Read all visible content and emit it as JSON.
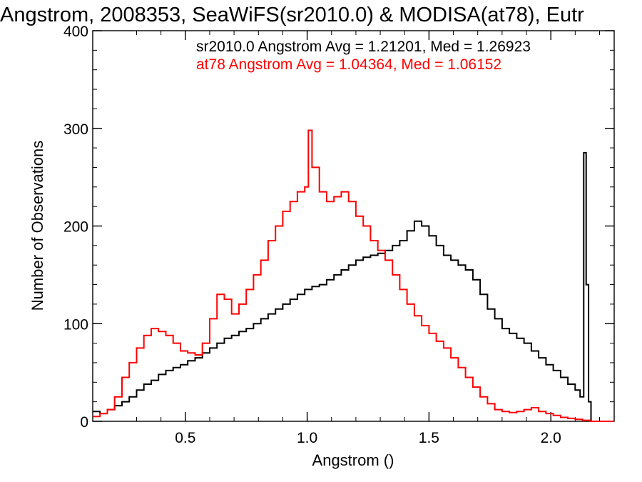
{
  "chart_data": {
    "type": "line",
    "title": "Angstrom, 2008353, SeaWiFS(sr2010.0) & MODISA(at78), Eutr",
    "xlabel": "Angstrom ()",
    "ylabel": "Number of Observations",
    "xlim": [
      0.12,
      2.26
    ],
    "ylim": [
      0,
      400
    ],
    "x_ticks": [
      "0.5",
      "1.0",
      "1.5",
      "2.0"
    ],
    "y_ticks": [
      "0",
      "100",
      "200",
      "300",
      "400"
    ],
    "grid": false,
    "annotations": [
      {
        "text": "sr2010.0 Angstrom Avg = 1.21201, Med = 1.26923",
        "color": "#000000"
      },
      {
        "text": "at78 Angstrom Avg = 1.04364, Med = 1.06152",
        "color": "#ff0000"
      }
    ],
    "series": [
      {
        "color": "#000000",
        "line_style": "steps",
        "x": [
          0.12,
          0.15,
          0.18,
          0.21,
          0.24,
          0.27,
          0.3,
          0.33,
          0.36,
          0.39,
          0.42,
          0.45,
          0.48,
          0.51,
          0.54,
          0.57,
          0.6,
          0.63,
          0.66,
          0.69,
          0.72,
          0.75,
          0.78,
          0.81,
          0.84,
          0.87,
          0.9,
          0.93,
          0.96,
          0.99,
          1.02,
          1.05,
          1.08,
          1.11,
          1.14,
          1.17,
          1.2,
          1.23,
          1.26,
          1.29,
          1.32,
          1.35,
          1.38,
          1.41,
          1.44,
          1.47,
          1.5,
          1.53,
          1.56,
          1.59,
          1.62,
          1.65,
          1.68,
          1.71,
          1.74,
          1.77,
          1.8,
          1.83,
          1.86,
          1.89,
          1.92,
          1.95,
          1.98,
          2.01,
          2.04,
          2.07,
          2.1,
          2.12,
          2.135,
          2.145,
          2.155,
          2.165,
          2.18,
          2.21,
          2.26
        ],
        "values": [
          10,
          8,
          12,
          16,
          20,
          25,
          32,
          38,
          42,
          48,
          52,
          55,
          58,
          62,
          65,
          70,
          75,
          80,
          85,
          88,
          92,
          95,
          100,
          105,
          110,
          115,
          120,
          125,
          130,
          135,
          138,
          140,
          145,
          150,
          155,
          160,
          165,
          168,
          170,
          172,
          175,
          180,
          185,
          195,
          205,
          200,
          190,
          180,
          170,
          165,
          160,
          155,
          145,
          130,
          115,
          105,
          95,
          90,
          85,
          80,
          72,
          65,
          58,
          52,
          45,
          38,
          32,
          25,
          275,
          140,
          20,
          0,
          0,
          0,
          0
        ]
      },
      {
        "color": "#ff0000",
        "line_style": "steps",
        "x": [
          0.12,
          0.15,
          0.18,
          0.21,
          0.24,
          0.27,
          0.3,
          0.33,
          0.36,
          0.39,
          0.42,
          0.45,
          0.48,
          0.51,
          0.54,
          0.57,
          0.6,
          0.63,
          0.66,
          0.69,
          0.72,
          0.75,
          0.78,
          0.81,
          0.84,
          0.87,
          0.9,
          0.93,
          0.96,
          0.99,
          1.005,
          1.02,
          1.05,
          1.08,
          1.11,
          1.14,
          1.17,
          1.2,
          1.23,
          1.26,
          1.29,
          1.32,
          1.35,
          1.38,
          1.41,
          1.44,
          1.47,
          1.5,
          1.53,
          1.56,
          1.59,
          1.62,
          1.65,
          1.68,
          1.71,
          1.74,
          1.77,
          1.8,
          1.83,
          1.86,
          1.89,
          1.92,
          1.95,
          1.98,
          2.01,
          2.04,
          2.07,
          2.1,
          2.13,
          2.16,
          2.26
        ],
        "values": [
          5,
          8,
          12,
          25,
          45,
          60,
          75,
          88,
          95,
          92,
          88,
          80,
          72,
          70,
          68,
          80,
          105,
          130,
          125,
          110,
          120,
          135,
          150,
          165,
          185,
          200,
          215,
          225,
          235,
          240,
          298,
          260,
          235,
          225,
          230,
          235,
          225,
          210,
          200,
          185,
          175,
          165,
          150,
          135,
          120,
          108,
          98,
          90,
          82,
          75,
          65,
          55,
          45,
          35,
          25,
          18,
          12,
          10,
          9,
          10,
          12,
          14,
          10,
          8,
          6,
          4,
          3,
          2,
          1,
          0,
          0
        ]
      }
    ]
  }
}
